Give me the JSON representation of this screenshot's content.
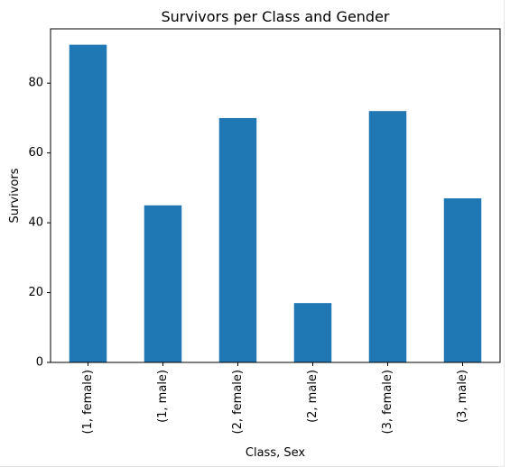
{
  "colors": {
    "bar": "#1f77b4",
    "axis": "#000000",
    "background": "#ffffff"
  },
  "chart_data": {
    "type": "bar",
    "title": "Survivors per Class and Gender",
    "xlabel": "Class, Sex",
    "ylabel": "Survivors",
    "categories": [
      "(1, female)",
      "(1, male)",
      "(2, female)",
      "(2, male)",
      "(3, female)",
      "(3, male)"
    ],
    "values": [
      91,
      45,
      70,
      17,
      72,
      47
    ],
    "ylim": [
      0,
      95.55
    ],
    "yticks": [
      0,
      20,
      40,
      60,
      80
    ],
    "grid": false,
    "legend": "none"
  }
}
